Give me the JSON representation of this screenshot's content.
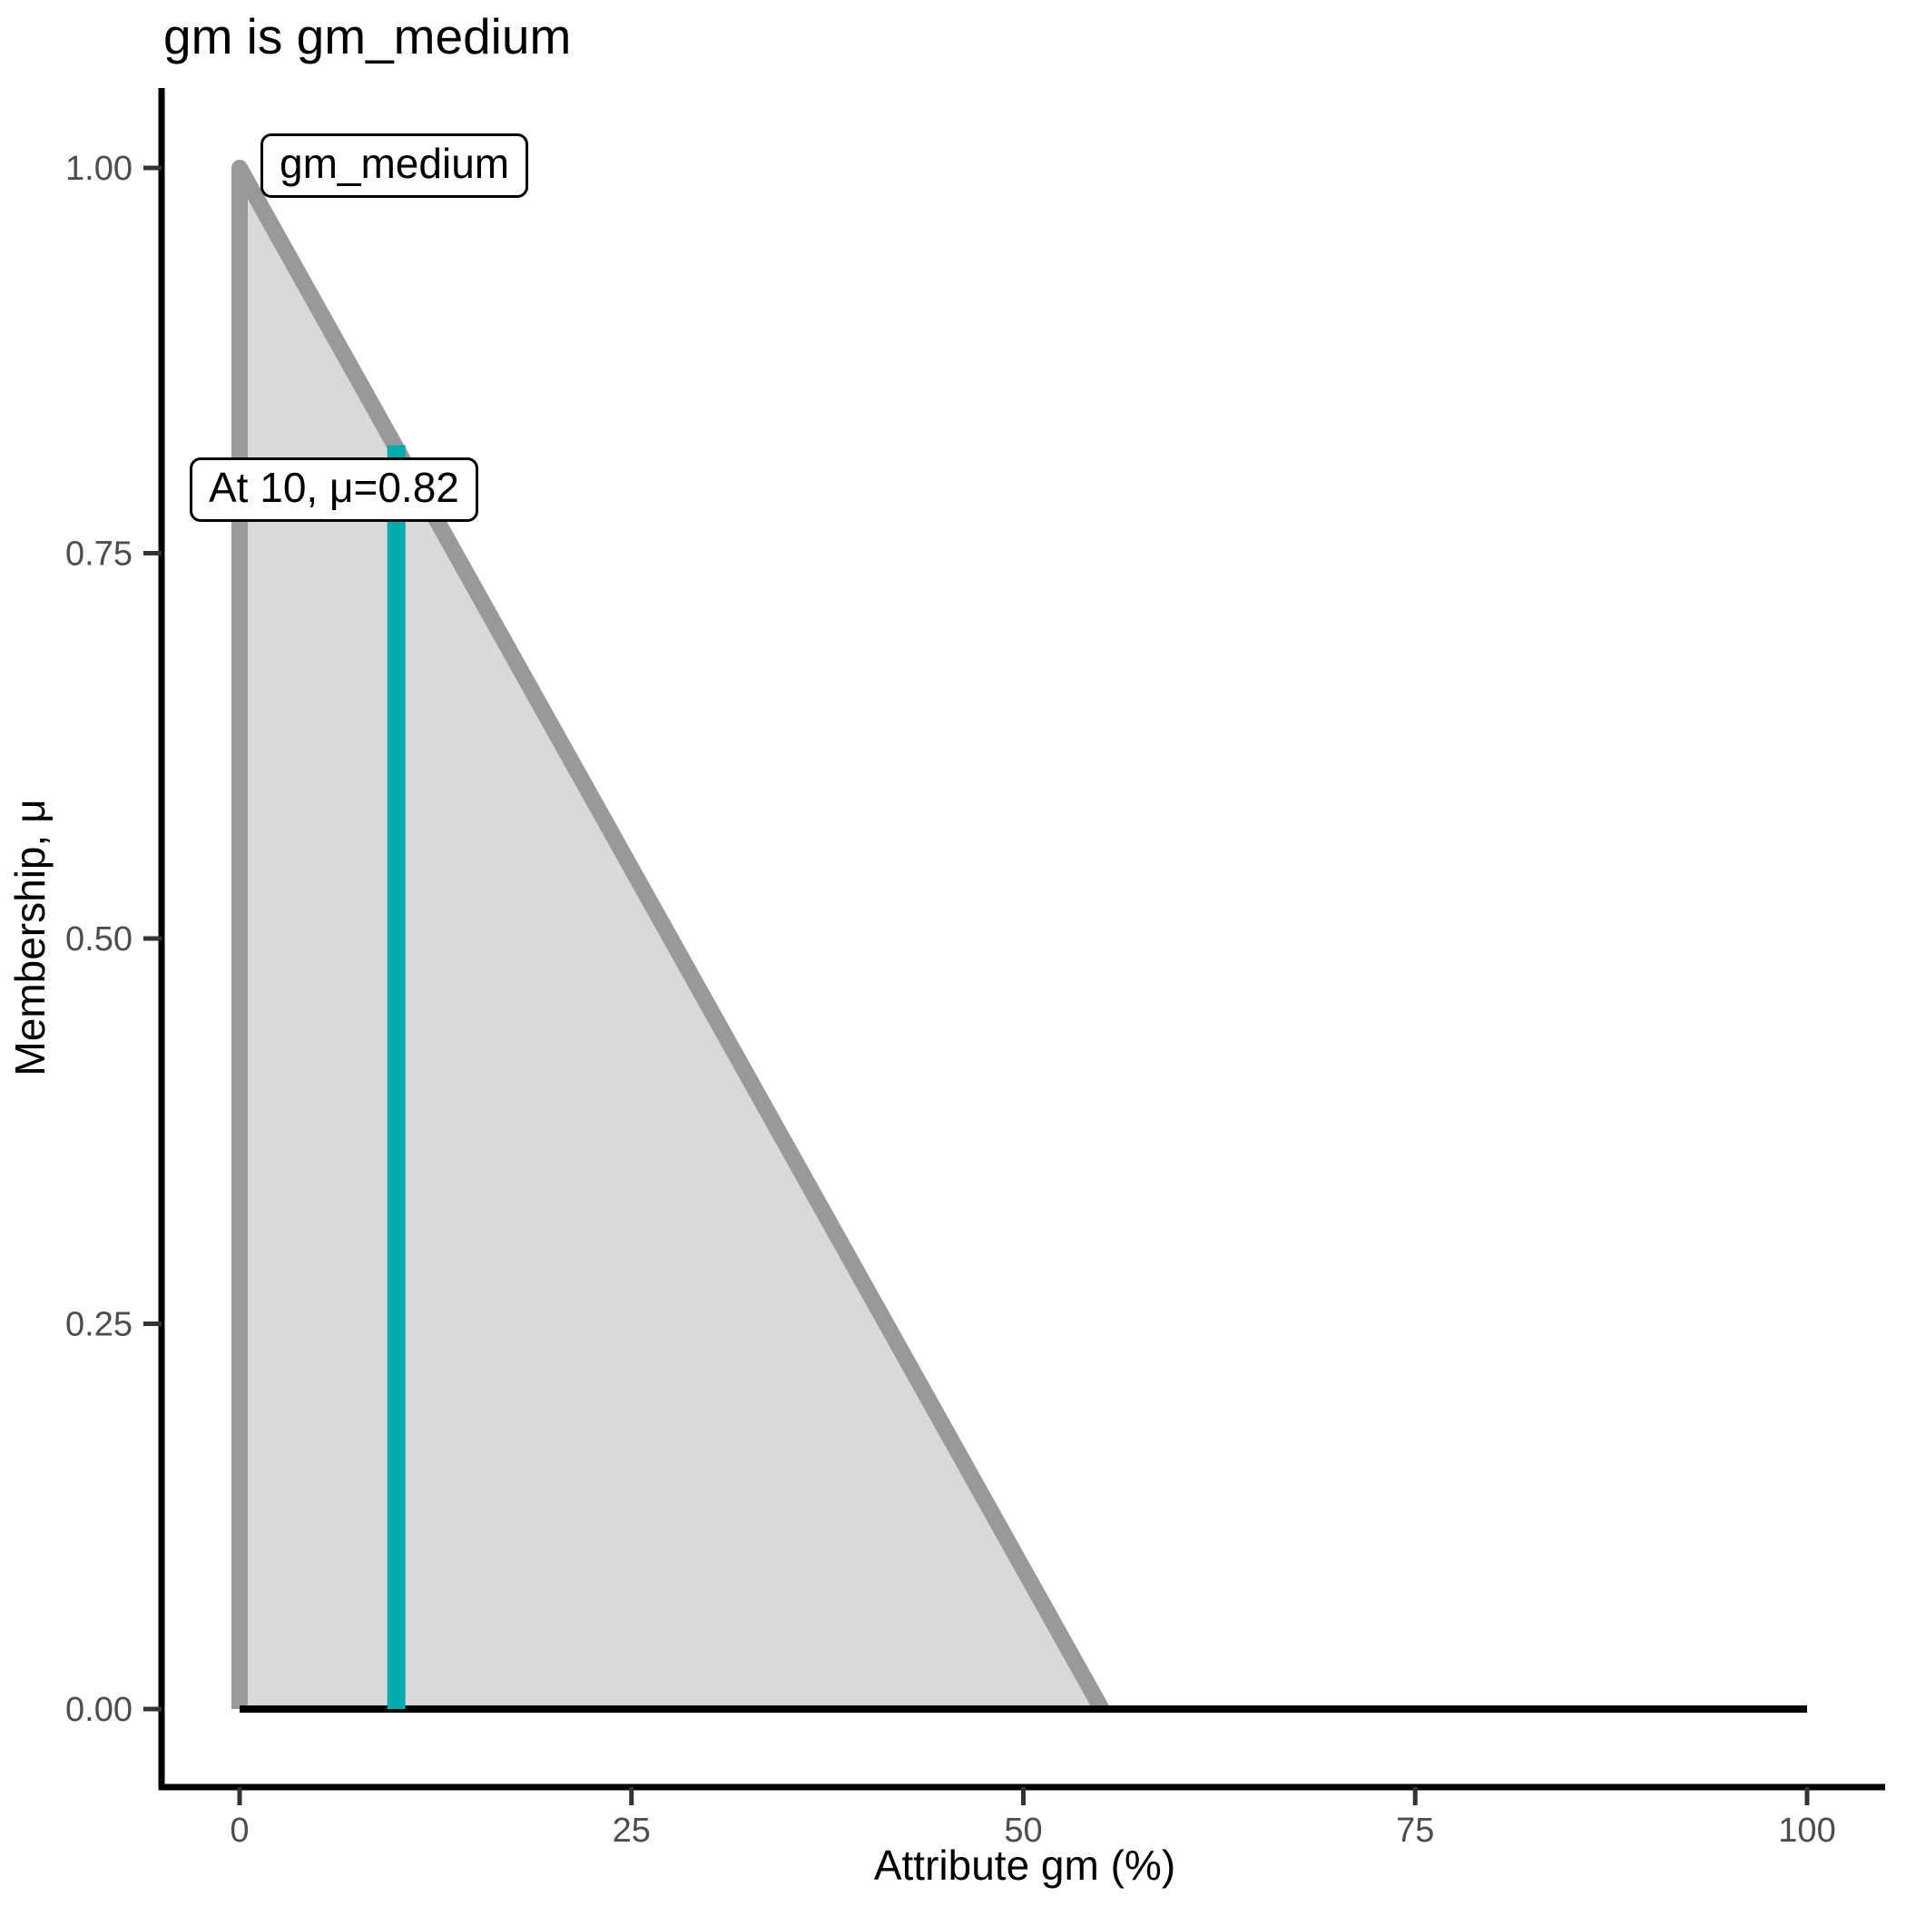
{
  "chart_data": {
    "type": "area",
    "title": "gm is gm_medium",
    "xlabel": "Attribute gm (%)",
    "ylabel": "Membership, μ",
    "xlim": [
      0,
      100
    ],
    "ylim": [
      0,
      1
    ],
    "grid": "off",
    "legend": "none",
    "x_axis": {
      "label": "Attribute gm (%)",
      "ticks": [
        {
          "value": 0,
          "label": "0"
        },
        {
          "value": 25,
          "label": "25"
        },
        {
          "value": 50,
          "label": "50"
        },
        {
          "value": 75,
          "label": "75"
        },
        {
          "value": 100,
          "label": "100"
        }
      ]
    },
    "y_axis": {
      "label": "Membership, μ",
      "ticks": [
        {
          "value": 0.0,
          "label": "0.00"
        },
        {
          "value": 0.25,
          "label": "0.25"
        },
        {
          "value": 0.5,
          "label": "0.50"
        },
        {
          "value": 0.75,
          "label": "0.75"
        },
        {
          "value": 1.0,
          "label": "1.00"
        }
      ]
    },
    "series": [
      {
        "name": "gm_medium membership function",
        "shape": "triangle",
        "points": [
          [
            0,
            0
          ],
          [
            0,
            1
          ],
          [
            55,
            0
          ]
        ],
        "fill_color": "#D9D9D9",
        "line_color": "#999999"
      },
      {
        "name": "zero baseline",
        "shape": "line",
        "points": [
          [
            0,
            0
          ],
          [
            100,
            0
          ]
        ],
        "line_color": "#000000"
      }
    ],
    "indicator": {
      "x": 10,
      "mu": 0.82,
      "color": "#00ABAD"
    },
    "annotations": [
      {
        "text": "gm_medium"
      },
      {
        "text": "At 10, μ=0.82"
      }
    ],
    "colors": {
      "axis_line": "#000000",
      "tick_mark": "#333333",
      "tick_label": "#4D4D4D",
      "title_text": "#000000"
    }
  }
}
